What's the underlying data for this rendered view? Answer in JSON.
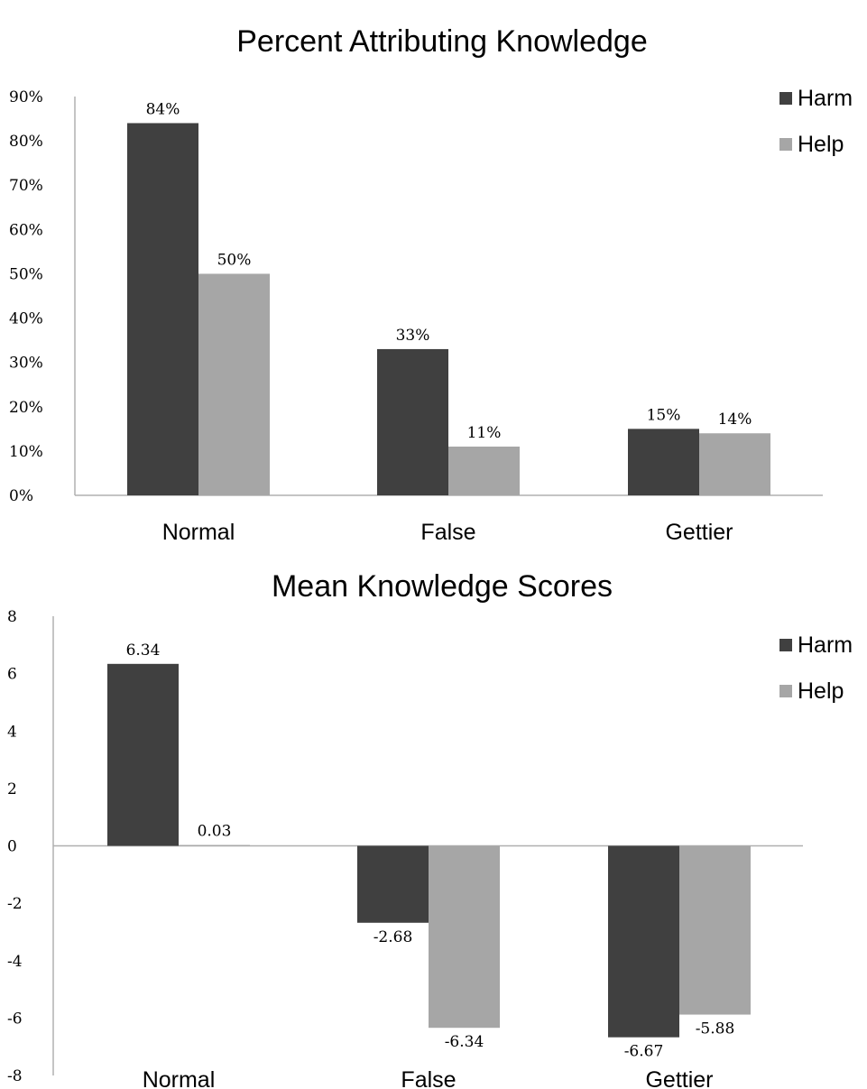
{
  "chart_data": [
    {
      "type": "bar",
      "title": "Percent Attributing Knowledge",
      "xlabel": "",
      "ylabel": "",
      "categories": [
        "Normal",
        "False",
        "Gettier"
      ],
      "series": [
        {
          "name": "Harm",
          "values": [
            84,
            33,
            15
          ],
          "labels": [
            "84%",
            "33%",
            "15%"
          ]
        },
        {
          "name": "Help",
          "values": [
            50,
            11,
            14
          ],
          "labels": [
            "50%",
            "11%",
            "14%"
          ]
        }
      ],
      "ylim": [
        0,
        90
      ],
      "yticks": [
        "0%",
        "10%",
        "20%",
        "30%",
        "40%",
        "50%",
        "60%",
        "70%",
        "80%",
        "90%"
      ],
      "colors": {
        "Harm": "#404040",
        "Help": "#a6a6a6"
      },
      "grid": false,
      "legend": "top-right"
    },
    {
      "type": "bar",
      "title": "Mean Knowledge Scores",
      "xlabel": "",
      "ylabel": "",
      "categories": [
        "Normal",
        "False",
        "Gettier"
      ],
      "series": [
        {
          "name": "Harm",
          "values": [
            6.34,
            -2.68,
            -6.67
          ],
          "labels": [
            "6.34",
            "-2.68",
            "-6.67"
          ]
        },
        {
          "name": "Help",
          "values": [
            0.03,
            -6.34,
            -5.88
          ],
          "labels": [
            "0.03",
            "-6.34",
            "-5.88"
          ]
        }
      ],
      "ylim": [
        -8,
        8
      ],
      "yticks": [
        "-8",
        "-6",
        "-4",
        "-2",
        "0",
        "2",
        "4",
        "6",
        "8"
      ],
      "colors": {
        "Harm": "#404040",
        "Help": "#a6a6a6"
      },
      "grid": false,
      "legend": "top-right"
    }
  ]
}
